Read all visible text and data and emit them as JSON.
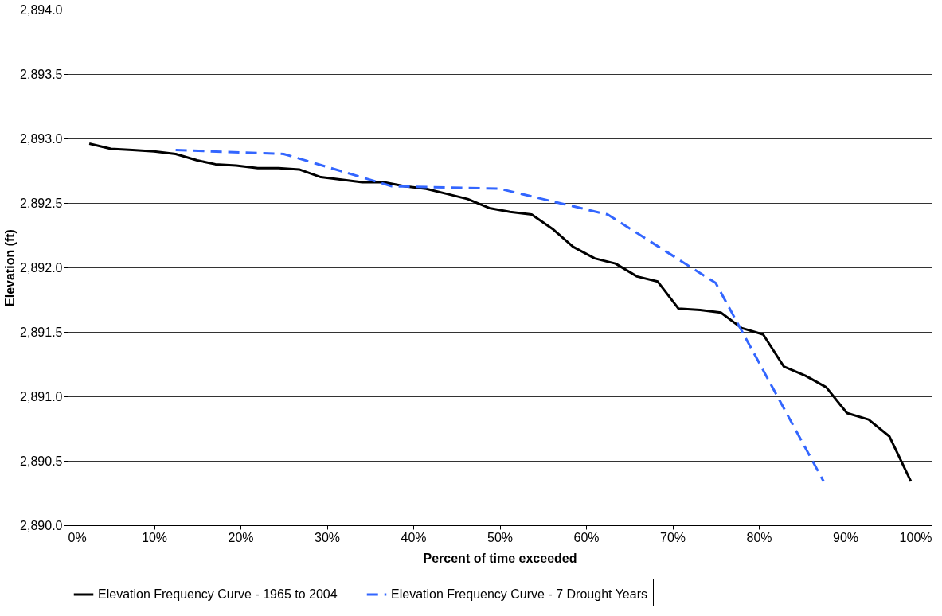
{
  "chart_data": {
    "type": "line",
    "xlabel": "Percent of time exceeded",
    "ylabel": "Elevation (ft)",
    "xlim": [
      0,
      100
    ],
    "ylim": [
      2890.0,
      2894.0
    ],
    "xticks": [
      {
        "value": 0,
        "label": "0%"
      },
      {
        "value": 10,
        "label": "10%"
      },
      {
        "value": 20,
        "label": "20%"
      },
      {
        "value": 30,
        "label": "30%"
      },
      {
        "value": 40,
        "label": "40%"
      },
      {
        "value": 50,
        "label": "50%"
      },
      {
        "value": 60,
        "label": "60%"
      },
      {
        "value": 70,
        "label": "70%"
      },
      {
        "value": 80,
        "label": "80%"
      },
      {
        "value": 90,
        "label": "90%"
      },
      {
        "value": 100,
        "label": "100%"
      }
    ],
    "yticks": [
      {
        "value": 2890.0,
        "label": "2,890.0"
      },
      {
        "value": 2890.5,
        "label": "2,890.5"
      },
      {
        "value": 2891.0,
        "label": "2,891.0"
      },
      {
        "value": 2891.5,
        "label": "2,891.5"
      },
      {
        "value": 2892.0,
        "label": "2,892.0"
      },
      {
        "value": 2892.5,
        "label": "2,892.5"
      },
      {
        "value": 2893.0,
        "label": "2,893.0"
      },
      {
        "value": 2893.5,
        "label": "2,893.5"
      },
      {
        "value": 2894.0,
        "label": "2,894.0"
      }
    ],
    "grid": "y",
    "legend": "bottom",
    "marker": "none",
    "series": [
      {
        "name": "Elevation Frequency Curve - 1965 to 2004",
        "color": "#000000",
        "line_style": "solid",
        "x": [
          2.5,
          5,
          7.5,
          10,
          12.5,
          15,
          17.1,
          19.5,
          22,
          24.4,
          26.8,
          29.3,
          31.7,
          34.1,
          36.6,
          39,
          41.5,
          43.9,
          46.3,
          48.8,
          51.2,
          53.7,
          56.1,
          58.5,
          61,
          63.4,
          65.9,
          68.3,
          70.7,
          73.2,
          75.6,
          78,
          80.5,
          82.9,
          85.4,
          87.8,
          90.2,
          92.7,
          95.1,
          97.6
        ],
        "values": [
          2892.96,
          2892.92,
          2892.91,
          2892.9,
          2892.88,
          2892.83,
          2892.8,
          2892.79,
          2892.77,
          2892.77,
          2892.76,
          2892.7,
          2892.68,
          2892.66,
          2892.66,
          2892.63,
          2892.61,
          2892.57,
          2892.53,
          2892.46,
          2892.43,
          2892.41,
          2892.3,
          2892.16,
          2892.07,
          2892.03,
          2891.93,
          2891.89,
          2891.68,
          2891.67,
          2891.65,
          2891.53,
          2891.48,
          2891.23,
          2891.16,
          2891.07,
          2890.87,
          2890.82,
          2890.69,
          2890.34
        ]
      },
      {
        "name": "Elevation Frequency Curve - 7 Drought Years",
        "color": "#3366ff",
        "line_style": "dashed",
        "x": [
          12.5,
          25,
          37.5,
          50,
          62.5,
          75,
          87.5
        ],
        "values": [
          2892.91,
          2892.88,
          2892.63,
          2892.61,
          2892.41,
          2891.88,
          2890.34
        ]
      }
    ]
  }
}
